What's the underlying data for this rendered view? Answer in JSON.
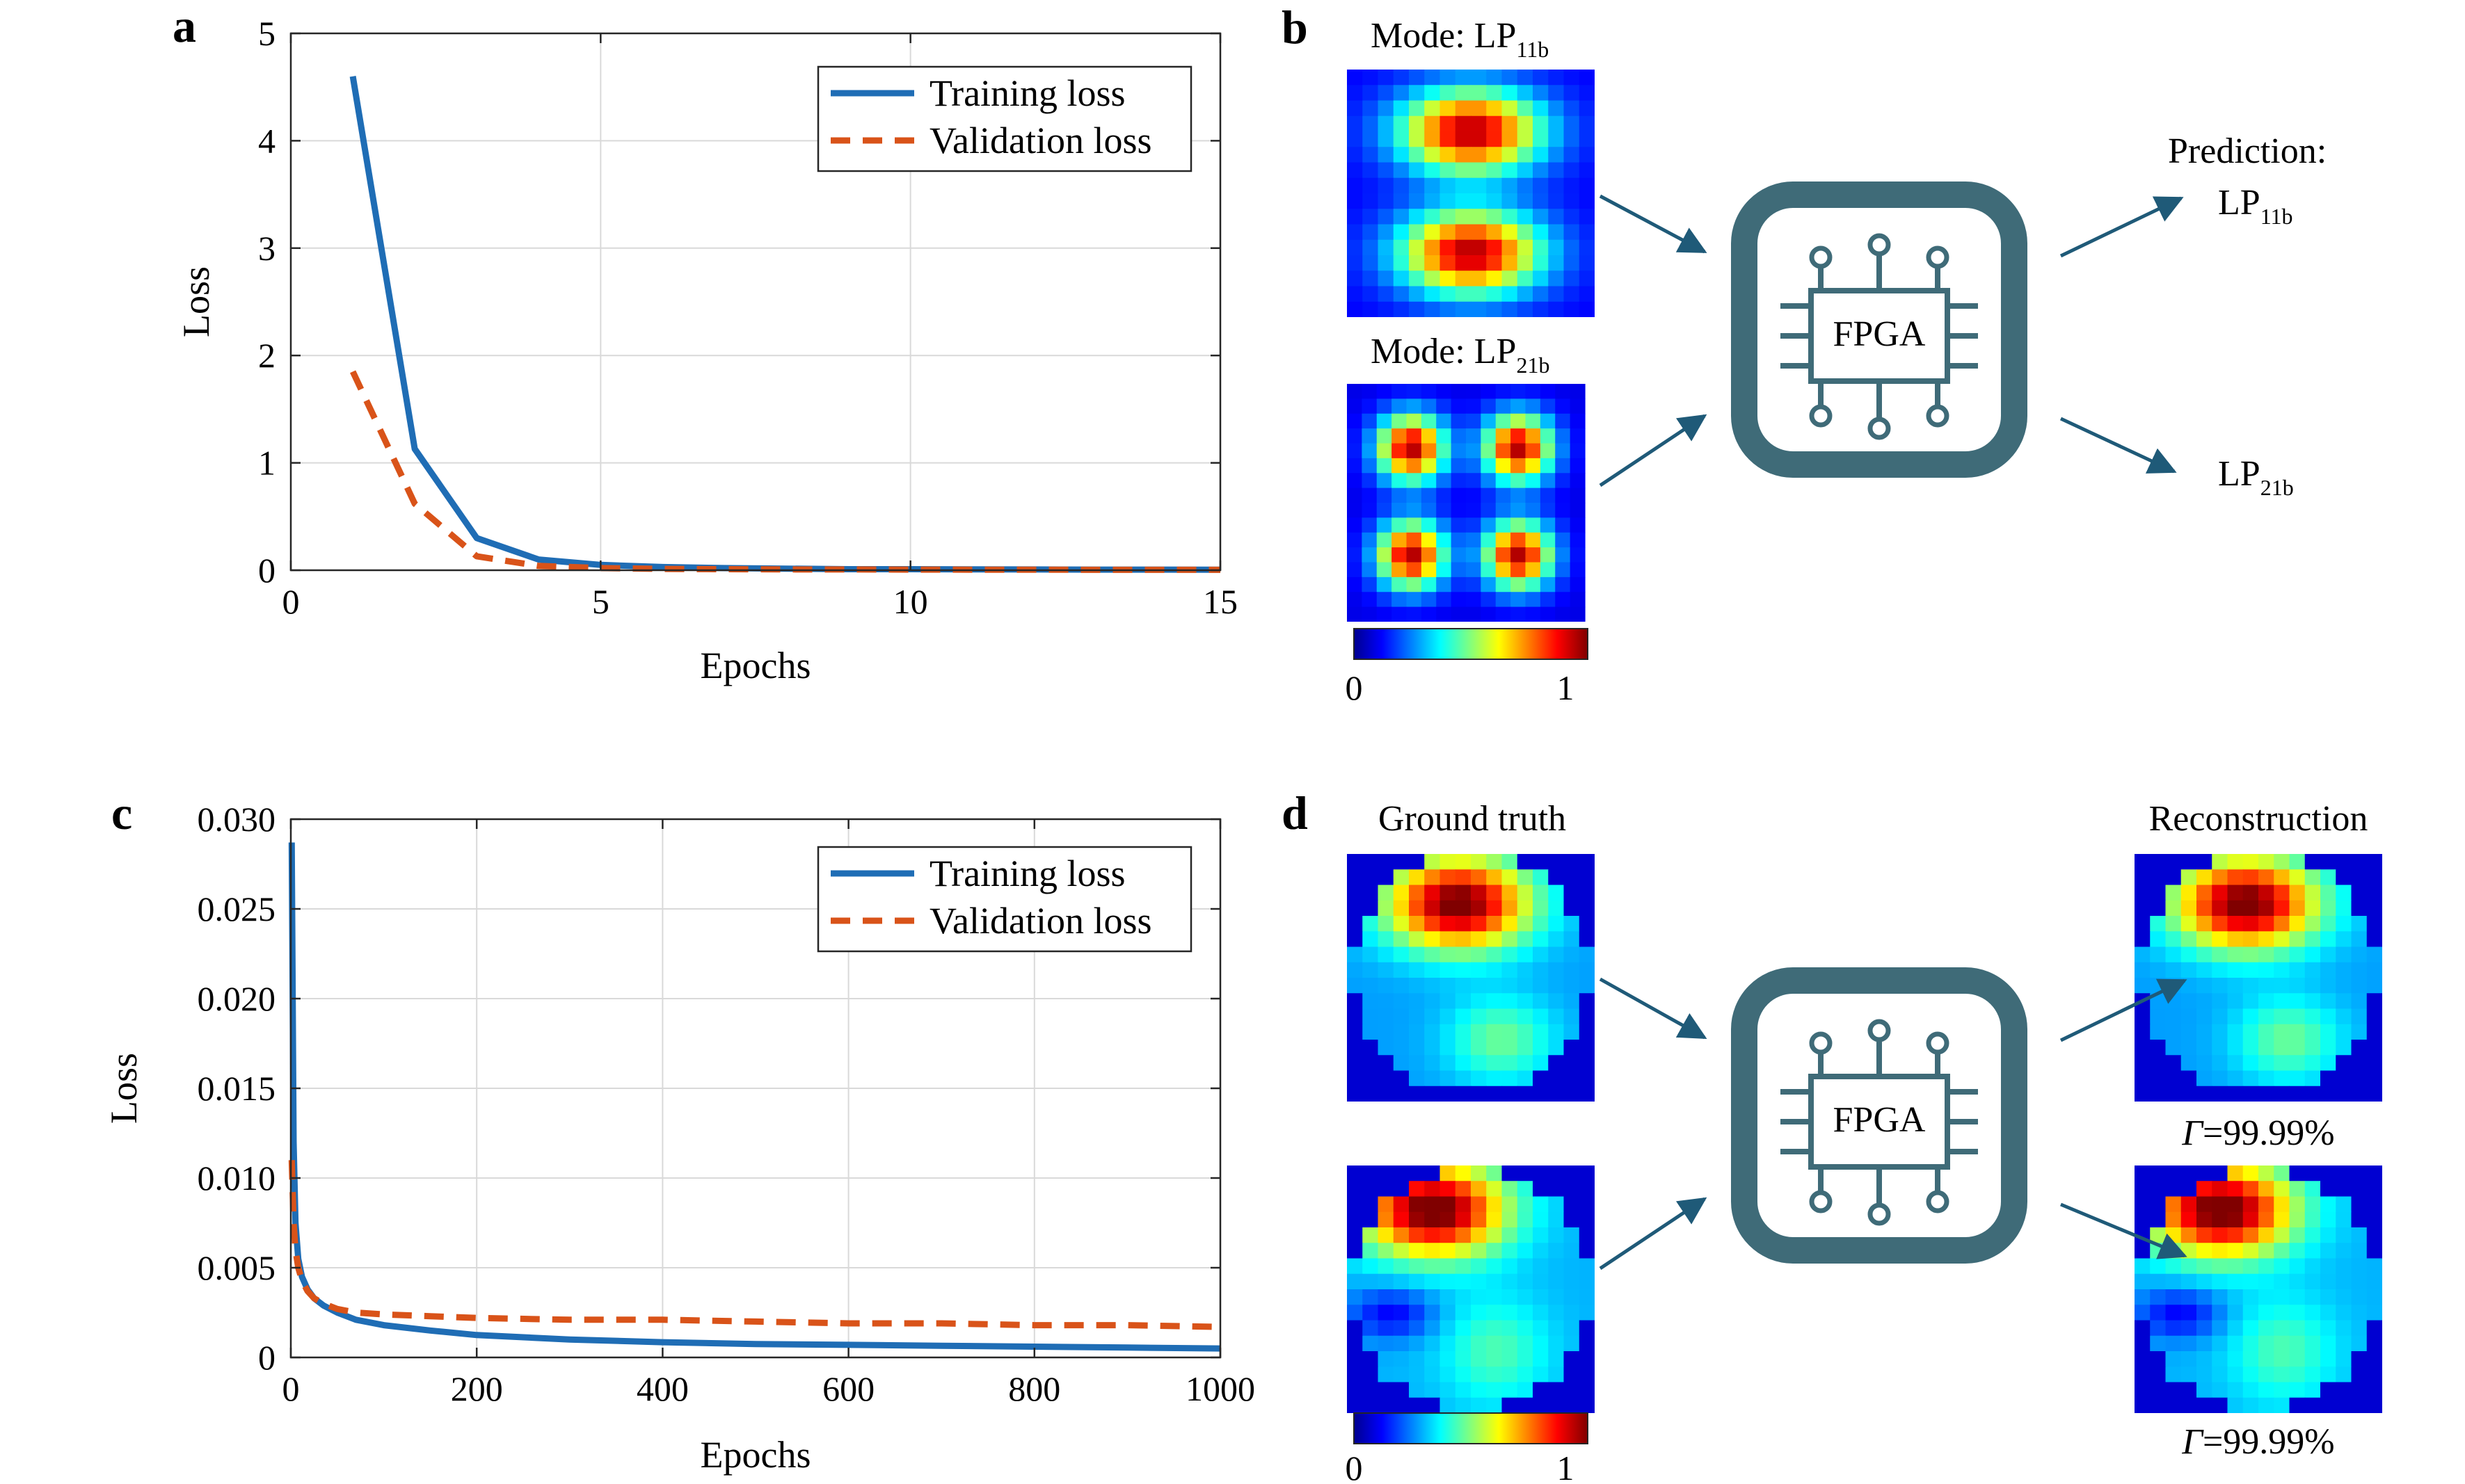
{
  "panels": {
    "a": {
      "label": "a",
      "chart_data": {
        "type": "line",
        "xlabel": "Epochs",
        "ylabel": "Loss",
        "xlim": [
          0,
          15
        ],
        "ylim": [
          0,
          5
        ],
        "xticks": [
          0,
          5,
          10,
          15
        ],
        "yticks": [
          0,
          1,
          2,
          3,
          4,
          5
        ],
        "grid": true,
        "legend_position": "top-right",
        "series": [
          {
            "name": "Training loss",
            "style": "solid",
            "color": "#1f6db5",
            "x": [
              1,
              2,
              3,
              4,
              5,
              6,
              7,
              8,
              9,
              10,
              11,
              12,
              13,
              14,
              15
            ],
            "y": [
              4.6,
              1.13,
              0.3,
              0.1,
              0.05,
              0.03,
              0.02,
              0.015,
              0.01,
              0.01,
              0.008,
              0.007,
              0.006,
              0.006,
              0.005
            ]
          },
          {
            "name": "Validation loss",
            "style": "dashed",
            "color": "#d95319",
            "x": [
              1,
              2,
              3,
              4,
              5,
              6,
              7,
              8,
              9,
              10,
              11,
              12,
              13,
              14,
              15
            ],
            "y": [
              1.85,
              0.62,
              0.13,
              0.04,
              0.02,
              0.012,
              0.01,
              0.008,
              0.007,
              0.006,
              0.005,
              0.005,
              0.004,
              0.004,
              0.004
            ]
          }
        ]
      }
    },
    "b": {
      "label": "b",
      "mode1_title": "Mode: LP",
      "mode1_sub": "11b",
      "mode2_title": "Mode: LP",
      "mode2_sub": "21b",
      "chip_label": "FPGA",
      "prediction_label": "Prediction:",
      "pred1": "LP",
      "pred1_sub": "11b",
      "pred2": "LP",
      "pred2_sub": "21b",
      "colorbar_min": "0",
      "colorbar_max": "1"
    },
    "c": {
      "label": "c",
      "chart_data": {
        "type": "line",
        "xlabel": "Epochs",
        "ylabel": "Loss",
        "xlim": [
          0,
          1000
        ],
        "ylim": [
          0,
          0.03
        ],
        "xticks": [
          0,
          200,
          400,
          600,
          800,
          1000
        ],
        "yticks": [
          0,
          0.005,
          0.01,
          0.015,
          0.02,
          0.025,
          0.03
        ],
        "ytick_labels": [
          "0",
          "0.005",
          "0.010",
          "0.015",
          "0.020",
          "0.025",
          "0.030"
        ],
        "grid": true,
        "legend_position": "top-right",
        "series": [
          {
            "name": "Training loss",
            "style": "solid",
            "color": "#1f6db5",
            "x": [
              1,
              3,
              5,
              8,
              12,
              18,
              25,
              35,
              50,
              70,
              100,
              150,
              200,
              300,
              400,
              500,
              600,
              700,
              800,
              900,
              1000
            ],
            "y": [
              0.0287,
              0.012,
              0.0075,
              0.0055,
              0.0045,
              0.0038,
              0.0033,
              0.0029,
              0.0025,
              0.0021,
              0.0018,
              0.0015,
              0.00125,
              0.001,
              0.00085,
              0.00075,
              0.0007,
              0.00065,
              0.0006,
              0.00055,
              0.0005
            ]
          },
          {
            "name": "Validation loss",
            "style": "dashed",
            "color": "#d95319",
            "x": [
              1,
              3,
              5,
              8,
              12,
              18,
              25,
              35,
              50,
              70,
              100,
              150,
              200,
              300,
              400,
              500,
              600,
              700,
              800,
              900,
              1000
            ],
            "y": [
              0.011,
              0.0075,
              0.006,
              0.005,
              0.0043,
              0.0037,
              0.0033,
              0.003,
              0.0027,
              0.0025,
              0.0024,
              0.0023,
              0.0022,
              0.0021,
              0.0021,
              0.002,
              0.0019,
              0.0019,
              0.0018,
              0.0018,
              0.0017
            ]
          }
        ]
      }
    },
    "d": {
      "label": "d",
      "ground_truth_title": "Ground truth",
      "reconstruction_title": "Reconstruction",
      "chip_label": "FPGA",
      "fidelity_symbol": "Γ",
      "fidelity1": "=99.99%",
      "fidelity2": "=99.99%",
      "colorbar_min": "0",
      "colorbar_max": "1"
    }
  },
  "colors": {
    "chip": "#3f6b78",
    "arrow": "#1f5a78",
    "training": "#1f6db5",
    "validation": "#d95319"
  }
}
